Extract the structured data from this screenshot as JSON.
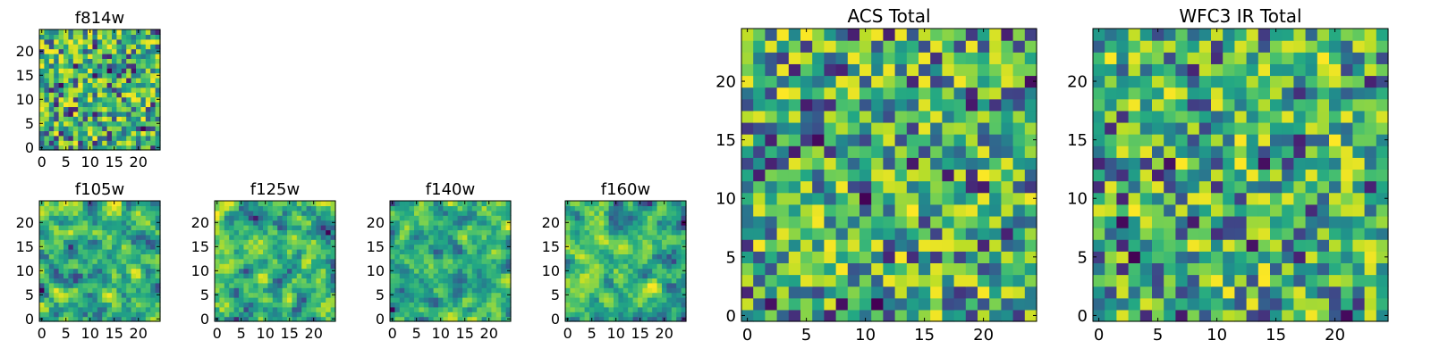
{
  "chart_data": [
    {
      "type": "heatmap",
      "title": "f814w",
      "grid_size": 25,
      "xticks": [
        "0",
        "5",
        "10",
        "15",
        "20"
      ],
      "yticks": [
        "0",
        "5",
        "10",
        "15",
        "20"
      ],
      "xlim": [
        0,
        25
      ],
      "ylim": [
        0,
        25
      ],
      "colormap": "viridis",
      "texture_seed": 11,
      "texture_smoothing": 0
    },
    {
      "type": "heatmap",
      "title": "f105w",
      "grid_size": 25,
      "xticks": [
        "0",
        "5",
        "10",
        "15",
        "20"
      ],
      "yticks": [
        "0",
        "5",
        "10",
        "15",
        "20"
      ],
      "xlim": [
        0,
        25
      ],
      "ylim": [
        0,
        25
      ],
      "colormap": "viridis",
      "texture_seed": 23,
      "texture_smoothing": 1
    },
    {
      "type": "heatmap",
      "title": "f125w",
      "grid_size": 25,
      "xticks": [
        "0",
        "5",
        "10",
        "15",
        "20"
      ],
      "yticks": [
        "0",
        "5",
        "10",
        "15",
        "20"
      ],
      "xlim": [
        0,
        25
      ],
      "ylim": [
        0,
        25
      ],
      "colormap": "viridis",
      "texture_seed": 37,
      "texture_smoothing": 1
    },
    {
      "type": "heatmap",
      "title": "f140w",
      "grid_size": 25,
      "xticks": [
        "0",
        "5",
        "10",
        "15",
        "20"
      ],
      "yticks": [
        "0",
        "5",
        "10",
        "15",
        "20"
      ],
      "xlim": [
        0,
        25
      ],
      "ylim": [
        0,
        25
      ],
      "colormap": "viridis",
      "texture_seed": 41,
      "texture_smoothing": 1
    },
    {
      "type": "heatmap",
      "title": "f160w",
      "grid_size": 25,
      "xticks": [
        "0",
        "5",
        "10",
        "15",
        "20"
      ],
      "yticks": [
        "0",
        "5",
        "10",
        "15",
        "20"
      ],
      "xlim": [
        0,
        25
      ],
      "ylim": [
        0,
        25
      ],
      "colormap": "viridis",
      "texture_seed": 53,
      "texture_smoothing": 1
    },
    {
      "type": "heatmap",
      "title": "ACS Total",
      "grid_size": 25,
      "xticks": [
        "0",
        "5",
        "10",
        "15",
        "20"
      ],
      "yticks": [
        "0",
        "5",
        "10",
        "15",
        "20"
      ],
      "xlim": [
        0,
        25
      ],
      "ylim": [
        0,
        25
      ],
      "colormap": "viridis",
      "texture_seed": 67,
      "texture_smoothing": 0
    },
    {
      "type": "heatmap",
      "title": "WFC3 IR Total",
      "grid_size": 25,
      "xticks": [
        "0",
        "5",
        "10",
        "15",
        "20"
      ],
      "yticks": [
        "0",
        "5",
        "10",
        "15",
        "20"
      ],
      "xlim": [
        0,
        25
      ],
      "ylim": [
        0,
        25
      ],
      "colormap": "viridis",
      "texture_seed": 79,
      "texture_smoothing": 0
    }
  ]
}
